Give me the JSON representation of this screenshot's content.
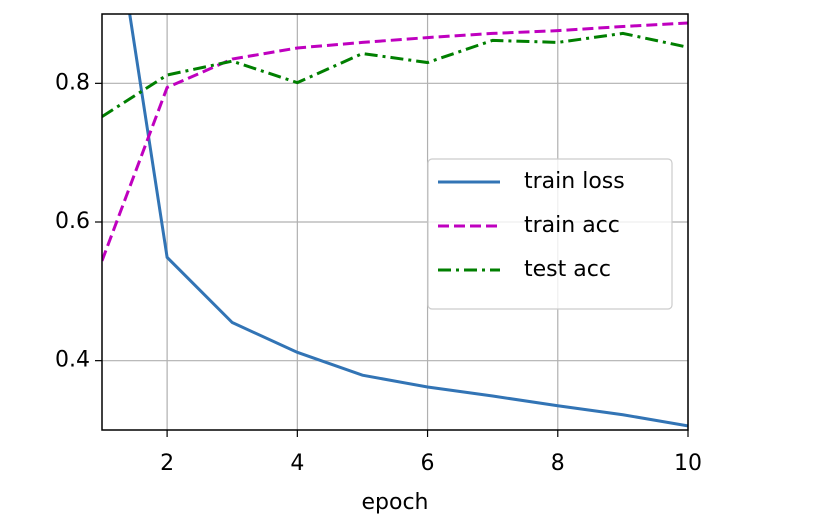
{
  "chart_data": {
    "type": "line",
    "x_label": "epoch",
    "x": [
      1,
      2,
      3,
      4,
      5,
      6,
      7,
      8,
      9,
      10
    ],
    "series": [
      {
        "name": "train loss",
        "color": "#3274b5",
        "linestyle": "solid",
        "values": [
          1.16,
          0.549,
          0.455,
          0.412,
          0.379,
          0.362,
          0.349,
          0.335,
          0.322,
          0.306
        ]
      },
      {
        "name": "train acc",
        "color": "#bf00bf",
        "linestyle": "dashed",
        "values": [
          0.544,
          0.794,
          0.835,
          0.851,
          0.859,
          0.866,
          0.872,
          0.876,
          0.882,
          0.887
        ]
      },
      {
        "name": "test acc",
        "color": "#007f00",
        "linestyle": "dashdot",
        "values": [
          0.752,
          0.812,
          0.832,
          0.801,
          0.843,
          0.83,
          0.862,
          0.859,
          0.872,
          0.852
        ]
      }
    ],
    "xlim": [
      1,
      10
    ],
    "ylim": [
      0.3,
      0.9
    ],
    "xticks": [
      2,
      4,
      6,
      8,
      10
    ],
    "yticks": [
      0.4,
      0.6,
      0.8
    ],
    "grid": true,
    "legend": "center right"
  }
}
